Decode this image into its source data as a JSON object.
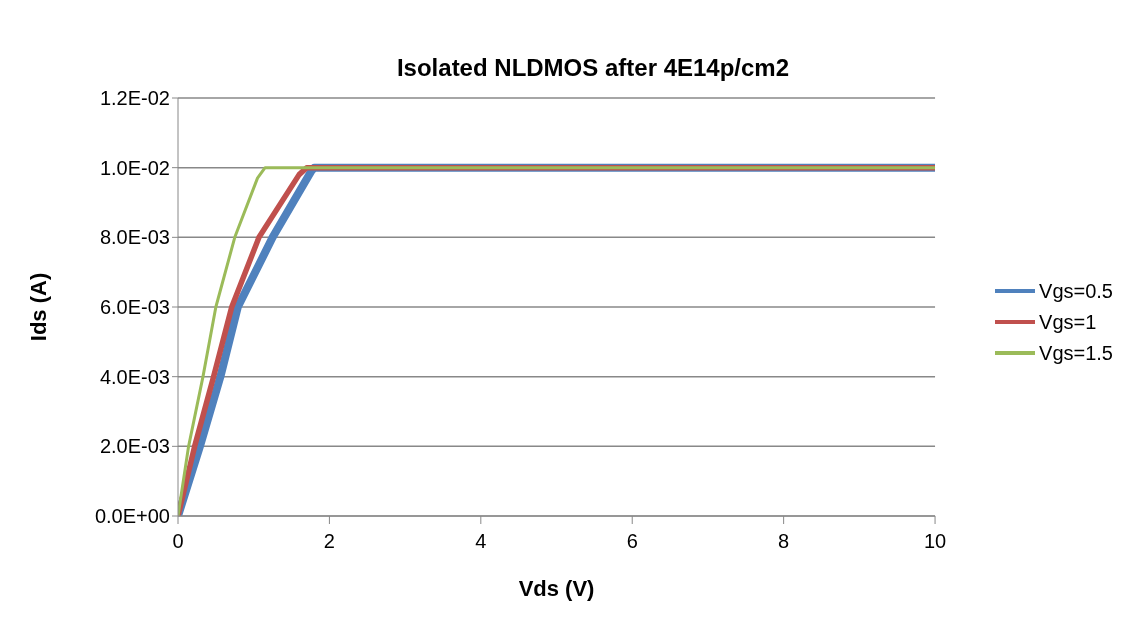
{
  "chart_data": {
    "type": "line",
    "title": "Isolated NLDMOS after 4E14p/cm2",
    "xlabel": "Vds (V)",
    "ylabel": "Ids (A)",
    "xlim": [
      0,
      10
    ],
    "xticks": [
      0,
      2,
      4,
      6,
      8,
      10
    ],
    "ylim": [
      0,
      0.012
    ],
    "yticks": [
      {
        "value": 0,
        "label": "0.0E+00"
      },
      {
        "value": 0.002,
        "label": "2.0E-03"
      },
      {
        "value": 0.004,
        "label": "4.0E-03"
      },
      {
        "value": 0.006,
        "label": "6.0E-03"
      },
      {
        "value": 0.008,
        "label": "8.0E-03"
      },
      {
        "value": 0.01,
        "label": "1.0E-02"
      },
      {
        "value": 0.012,
        "label": "1.2E-02"
      }
    ],
    "grid": "y",
    "legend": "right",
    "marker": "none",
    "line_style": "solid",
    "series": [
      {
        "name": "Vgs=0.5",
        "color": "#4f81bd",
        "x": [
          0,
          0.29,
          0.56,
          0.79,
          1.25,
          1.76,
          1.8,
          10
        ],
        "values": [
          0,
          0.002,
          0.004,
          0.006,
          0.008,
          0.0099,
          0.01,
          0.01
        ]
      },
      {
        "name": "Vgs=1",
        "color": "#c0504d",
        "x": [
          0,
          0.22,
          0.47,
          0.71,
          1.07,
          1.6,
          1.7,
          10
        ],
        "values": [
          0,
          0.002,
          0.004,
          0.006,
          0.008,
          0.0098,
          0.01,
          0.01
        ]
      },
      {
        "name": "Vgs=1.5",
        "color": "#9bbb59",
        "x": [
          0,
          0.14,
          0.33,
          0.5,
          0.75,
          1.05,
          1.15,
          10
        ],
        "values": [
          0,
          0.002,
          0.004,
          0.006,
          0.008,
          0.0097,
          0.01,
          0.01
        ]
      }
    ]
  }
}
